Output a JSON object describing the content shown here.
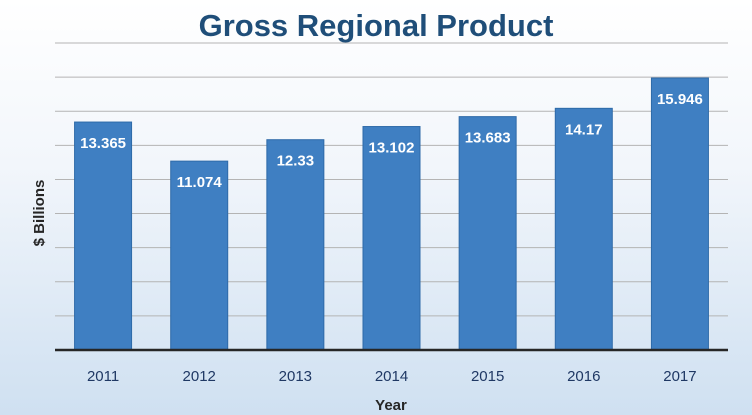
{
  "chart_data": {
    "type": "bar",
    "title": "Gross Regional Product",
    "xlabel": "Year",
    "ylabel": "$ Billions",
    "categories": [
      "2011",
      "2012",
      "2013",
      "2014",
      "2015",
      "2016",
      "2017"
    ],
    "values": [
      13.365,
      11.074,
      12.33,
      13.102,
      13.683,
      14.17,
      15.946
    ],
    "data_labels": [
      "13.365",
      "11.074",
      "12.33",
      "13.102",
      "13.683",
      "14.17",
      "15.946"
    ],
    "ylim": [
      0,
      18
    ],
    "y_gridline_step": 2,
    "y_tick_labels_shown": false,
    "grid": true,
    "legend": "none",
    "colors": {
      "bar": "#3f7fc2",
      "bar_edge": "#2e6aa8",
      "grid": "#b4b4b4",
      "axis": "#262626",
      "title": "#1f4e79"
    }
  }
}
